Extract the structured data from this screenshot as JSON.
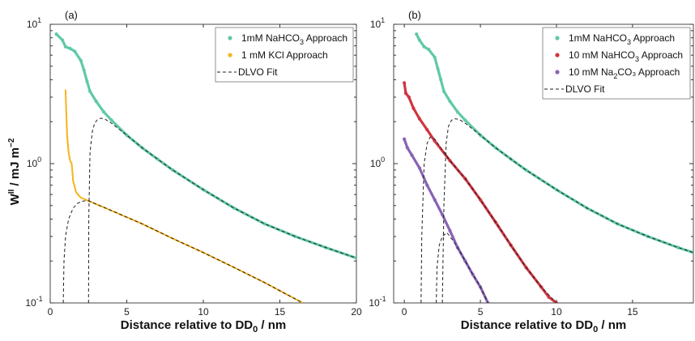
{
  "ylabel": "Wǁ / mJ m⁻²",
  "colors": {
    "teal": "#5fc9a9",
    "orange": "#f7b21c",
    "red": "#d03541",
    "purple": "#8663b5",
    "fit": "#222222",
    "axis": "#333333"
  },
  "chart_data": [
    {
      "type": "line",
      "panel_label": "(a)",
      "xlabel": "Distance relative to D₀ / nm",
      "ylabel": "Wǁ / mJ m⁻²",
      "xlim": [
        0,
        20
      ],
      "ylim": [
        0.1,
        10
      ],
      "yscale": "log",
      "xticks": [
        0,
        5,
        10,
        15,
        20
      ],
      "grid": false,
      "legend_position": "top-right",
      "series": [
        {
          "name": "1mM NaHCO₃ Approach",
          "style": "markers",
          "color": "teal",
          "x": [
            0.4,
            0.8,
            1.0,
            1.3,
            1.6,
            2.0,
            2.2,
            2.4,
            2.6,
            3.0,
            3.5,
            4.0,
            5.0,
            6.0,
            7.0,
            8.0,
            10.0,
            12.0,
            14.0,
            16.0,
            18.0,
            20.0
          ],
          "y": [
            8.5,
            7.7,
            6.9,
            6.7,
            6.4,
            5.5,
            4.7,
            3.9,
            3.3,
            2.8,
            2.35,
            2.05,
            1.6,
            1.3,
            1.08,
            0.9,
            0.65,
            0.48,
            0.37,
            0.3,
            0.25,
            0.21
          ]
        },
        {
          "name": "1 mM KCl Approach",
          "style": "line",
          "color": "orange",
          "x": [
            1.0,
            1.1,
            1.2,
            1.3,
            1.4,
            1.5,
            1.7,
            2.0,
            2.5,
            4.0,
            6.0,
            8.0,
            10.0,
            12.0,
            14.0,
            16.5
          ],
          "y": [
            3.4,
            1.6,
            1.2,
            1.05,
            1.0,
            0.75,
            0.62,
            0.57,
            0.54,
            0.46,
            0.37,
            0.29,
            0.23,
            0.18,
            0.14,
            0.1
          ]
        },
        {
          "name": "DLVO Fit",
          "style": "dashed",
          "color": "fit",
          "x": [
            2.5,
            2.52,
            2.6,
            2.75,
            2.9,
            3.1,
            3.3,
            3.6,
            4.0,
            5.0,
            6.0,
            7.0,
            8.0,
            10.0,
            12.0,
            14.0,
            16.0,
            18.0,
            20.0
          ],
          "y": [
            0.1,
            0.4,
            1.2,
            1.7,
            1.95,
            2.08,
            2.12,
            2.08,
            1.95,
            1.6,
            1.3,
            1.08,
            0.9,
            0.65,
            0.48,
            0.37,
            0.3,
            0.25,
            0.21
          ]
        },
        {
          "name": "",
          "style": "dashed",
          "color": "fit",
          "x": [
            0.85,
            0.9,
            1.0,
            1.2,
            1.5,
            1.8,
            2.2,
            2.5,
            4.0,
            6.0,
            8.0,
            10.0,
            12.0,
            14.0,
            16.5
          ],
          "y": [
            0.1,
            0.2,
            0.3,
            0.4,
            0.48,
            0.52,
            0.54,
            0.54,
            0.46,
            0.37,
            0.29,
            0.23,
            0.18,
            0.14,
            0.1
          ]
        }
      ]
    },
    {
      "type": "line",
      "panel_label": "(b)",
      "xlabel": "Distance relative to D₀ / nm",
      "ylabel": "",
      "xlim": [
        -0.7,
        19
      ],
      "ylim": [
        0.1,
        10
      ],
      "yscale": "log",
      "xticks": [
        0,
        5,
        10,
        15
      ],
      "grid": false,
      "legend_position": "top-right",
      "series": [
        {
          "name": "1mM NaHCO₃ Approach",
          "style": "markers",
          "color": "teal",
          "x": [
            0.8,
            1.0,
            1.3,
            1.6,
            2.0,
            2.2,
            2.4,
            2.6,
            3.0,
            3.5,
            4.0,
            5.0,
            6.0,
            7.0,
            8.0,
            10.0,
            12.0,
            14.0,
            16.0,
            18.0,
            19.0
          ],
          "y": [
            8.5,
            7.7,
            6.9,
            6.6,
            5.8,
            4.8,
            4.0,
            3.3,
            2.8,
            2.35,
            2.05,
            1.6,
            1.3,
            1.08,
            0.9,
            0.65,
            0.48,
            0.37,
            0.3,
            0.25,
            0.23
          ]
        },
        {
          "name": "10 mM NaHCO₃ Approach",
          "style": "markers",
          "color": "red",
          "x": [
            0.0,
            0.1,
            0.3,
            0.6,
            1.0,
            1.5,
            2.0,
            3.0,
            4.0,
            5.0,
            6.0,
            7.0,
            8.0,
            9.0,
            9.5,
            10.0
          ],
          "y": [
            3.8,
            3.2,
            3.0,
            2.5,
            2.1,
            1.75,
            1.45,
            1.05,
            0.78,
            0.55,
            0.38,
            0.26,
            0.18,
            0.13,
            0.11,
            0.1
          ]
        },
        {
          "name": "10 mM Na₂CO₃ Approach",
          "style": "markers",
          "color": "purple",
          "x": [
            0.0,
            0.2,
            0.5,
            1.0,
            1.5,
            2.0,
            2.5,
            3.0,
            3.5,
            4.0,
            4.5,
            5.0,
            5.5
          ],
          "y": [
            1.5,
            1.3,
            1.15,
            0.93,
            0.7,
            0.55,
            0.43,
            0.33,
            0.25,
            0.2,
            0.16,
            0.13,
            0.1
          ]
        },
        {
          "name": "DLVO Fit",
          "style": "dashed",
          "color": "fit",
          "x": [
            2.5,
            2.6,
            2.75,
            2.9,
            3.1,
            3.3,
            3.6,
            4.0,
            5.0,
            6.0,
            7.0,
            8.0,
            10.0,
            12.0,
            14.0,
            16.0,
            18.0,
            19.0
          ],
          "y": [
            0.1,
            0.5,
            1.4,
            1.85,
            2.05,
            2.1,
            2.08,
            1.95,
            1.6,
            1.3,
            1.08,
            0.9,
            0.65,
            0.48,
            0.37,
            0.3,
            0.25,
            0.23
          ]
        },
        {
          "name": "",
          "style": "dashed",
          "color": "fit",
          "x": [
            1.1,
            1.15,
            1.3,
            1.5,
            1.7,
            2.0,
            3.0,
            4.0,
            5.0,
            6.0,
            7.0,
            8.0,
            9.0,
            10.0
          ],
          "y": [
            0.1,
            0.3,
            1.0,
            1.4,
            1.55,
            1.5,
            1.05,
            0.78,
            0.55,
            0.38,
            0.26,
            0.18,
            0.13,
            0.1
          ]
        },
        {
          "name": "",
          "style": "dashed",
          "color": "fit",
          "x": [
            2.1,
            2.15,
            2.3,
            2.5,
            2.8,
            3.2,
            3.5,
            4.0,
            4.5,
            5.0,
            5.5
          ],
          "y": [
            0.1,
            0.18,
            0.26,
            0.3,
            0.32,
            0.28,
            0.25,
            0.2,
            0.16,
            0.13,
            0.1
          ]
        }
      ]
    }
  ],
  "legends": [
    {
      "entries": [
        {
          "label": "1mM NaHCO",
          "sub": "3",
          "suffix": " Approach",
          "marker": "dot",
          "color": "teal"
        },
        {
          "label": "1 mM KCl Approach",
          "sub": "",
          "suffix": "",
          "marker": "dot",
          "color": "orange"
        },
        {
          "label": "DLVO Fit",
          "sub": "",
          "suffix": "",
          "marker": "dash",
          "color": "fit"
        }
      ]
    },
    {
      "entries": [
        {
          "label": "1mM NaHCO",
          "sub": "3",
          "suffix": " Approach",
          "marker": "dot",
          "color": "teal"
        },
        {
          "label": "10 mM NaHCO",
          "sub": "3",
          "suffix": " Approach",
          "marker": "dot",
          "color": "red"
        },
        {
          "label": "10 mM Na",
          "sub": "2",
          "suffix": "CO₃ Approach",
          "marker": "dot",
          "color": "purple"
        },
        {
          "label": "DLVO Fit",
          "sub": "",
          "suffix": "",
          "marker": "dash",
          "color": "fit"
        }
      ]
    }
  ]
}
